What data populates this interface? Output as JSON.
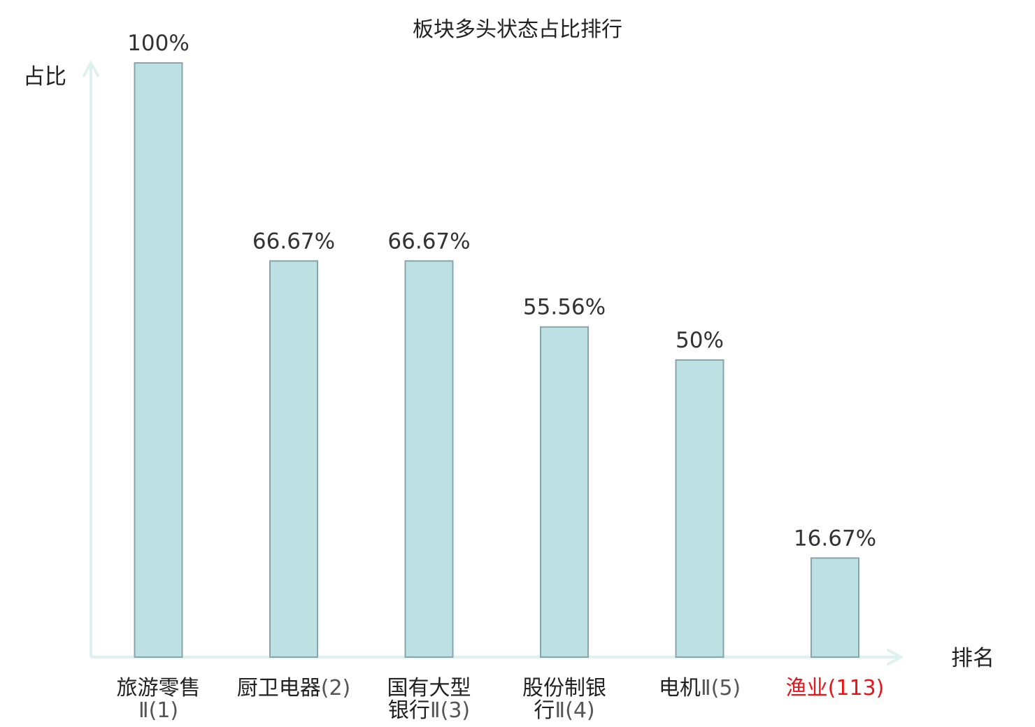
{
  "chart_data": {
    "type": "bar",
    "title": "板块多头状态占比排行",
    "ylabel": "占比",
    "xlabel": "排名",
    "ylim": [
      0,
      100
    ],
    "grid": false,
    "categories": [
      {
        "lines": [
          {
            "name": "旅游零售",
            "rank": ""
          },
          {
            "name": "",
            "rank": "Ⅱ(1)"
          }
        ],
        "highlight": false
      },
      {
        "lines": [
          {
            "name": "厨卫电器",
            "rank": "(2)"
          }
        ],
        "highlight": false
      },
      {
        "lines": [
          {
            "name": "国有大型",
            "rank": ""
          },
          {
            "name": "银行",
            "rank": "Ⅱ(3)"
          }
        ],
        "highlight": false
      },
      {
        "lines": [
          {
            "name": "股份制银",
            "rank": ""
          },
          {
            "name": "行",
            "rank": "Ⅱ(4)"
          }
        ],
        "highlight": false
      },
      {
        "lines": [
          {
            "name": "电机",
            "rank": "Ⅱ(5)"
          }
        ],
        "highlight": false
      },
      {
        "lines": [
          {
            "name": "渔业",
            "rank": "(113)"
          }
        ],
        "highlight": true
      }
    ],
    "values": [
      100,
      66.67,
      66.67,
      55.56,
      50,
      16.67
    ],
    "value_labels": [
      "100%",
      "66.67%",
      "66.67%",
      "55.56%",
      "50%",
      "16.67%"
    ],
    "colors": {
      "bar_fill": "#bde0e3",
      "bar_stroke": "#86a6ab",
      "axis": "#dff1ef",
      "highlight": "#e8161b"
    }
  }
}
